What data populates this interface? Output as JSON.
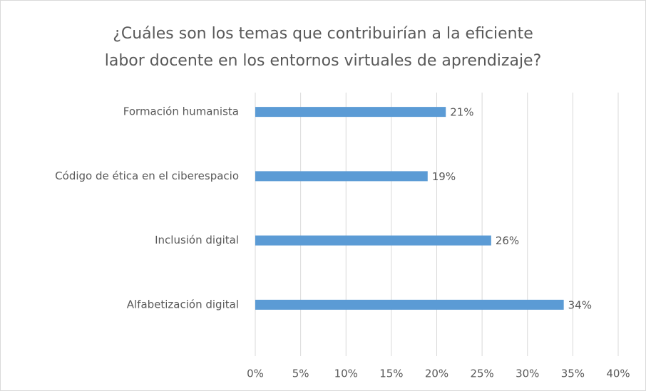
{
  "chart_data": {
    "type": "bar",
    "orientation": "horizontal",
    "title": [
      "¿Cuáles son los temas que contribuirían a la eficiente",
      "labor docente en los entornos virtuales de aprendizaje?"
    ],
    "categories": [
      "Formación humanista",
      "Código de ética en el ciberespacio",
      "Inclusión digital",
      "Alfabetización digital"
    ],
    "values": [
      21,
      19,
      26,
      34
    ],
    "value_labels": [
      "21%",
      "19%",
      "26%",
      "34%"
    ],
    "color": "#5b9bd5",
    "xlim": [
      0,
      40
    ],
    "xticks": [
      {
        "value": 0,
        "label": "0%"
      },
      {
        "value": 5,
        "label": "5%"
      },
      {
        "value": 10,
        "label": "10%"
      },
      {
        "value": 15,
        "label": "15%"
      },
      {
        "value": 20,
        "label": "20%"
      },
      {
        "value": 25,
        "label": "25%"
      },
      {
        "value": 30,
        "label": "30%"
      },
      {
        "value": 35,
        "label": "35%"
      },
      {
        "value": 40,
        "label": "40%"
      }
    ],
    "grid": true
  }
}
